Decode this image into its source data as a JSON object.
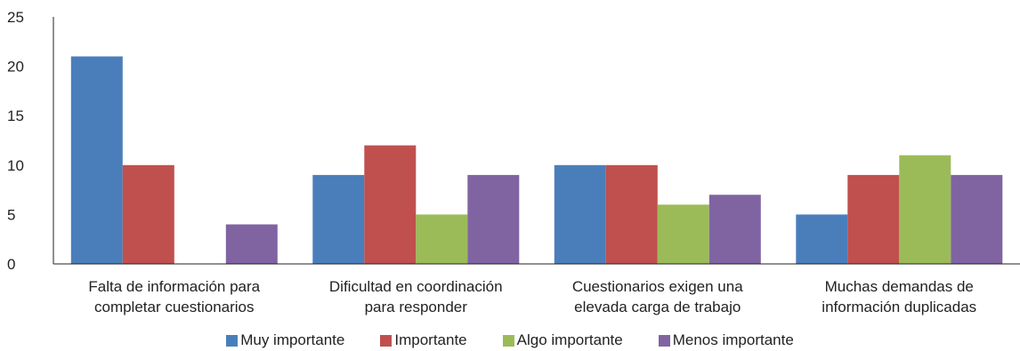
{
  "chart_data": {
    "type": "bar",
    "categories": [
      [
        "Falta de información para",
        "completar cuestionarios"
      ],
      [
        "Dificultad en coordinación",
        "para responder"
      ],
      [
        "Cuestionarios exigen una",
        "elevada carga de trabajo"
      ],
      [
        "Muchas demandas de",
        "información duplicadas"
      ]
    ],
    "series": [
      {
        "name": "Muy importante",
        "color": "#4a7ebb",
        "values": [
          21,
          9,
          10,
          5
        ]
      },
      {
        "name": "Importante",
        "color": "#c0504d",
        "values": [
          10,
          12,
          10,
          9
        ]
      },
      {
        "name": "Algo importante",
        "color": "#9bbb59",
        "values": [
          0,
          5,
          6,
          11
        ]
      },
      {
        "name": "Menos importante",
        "color": "#8064a2",
        "values": [
          4,
          9,
          7,
          9
        ]
      }
    ],
    "ylim": [
      0,
      25
    ],
    "yticks": [
      0,
      5,
      10,
      15,
      20,
      25
    ],
    "grid": false,
    "legend_position": "bottom"
  }
}
